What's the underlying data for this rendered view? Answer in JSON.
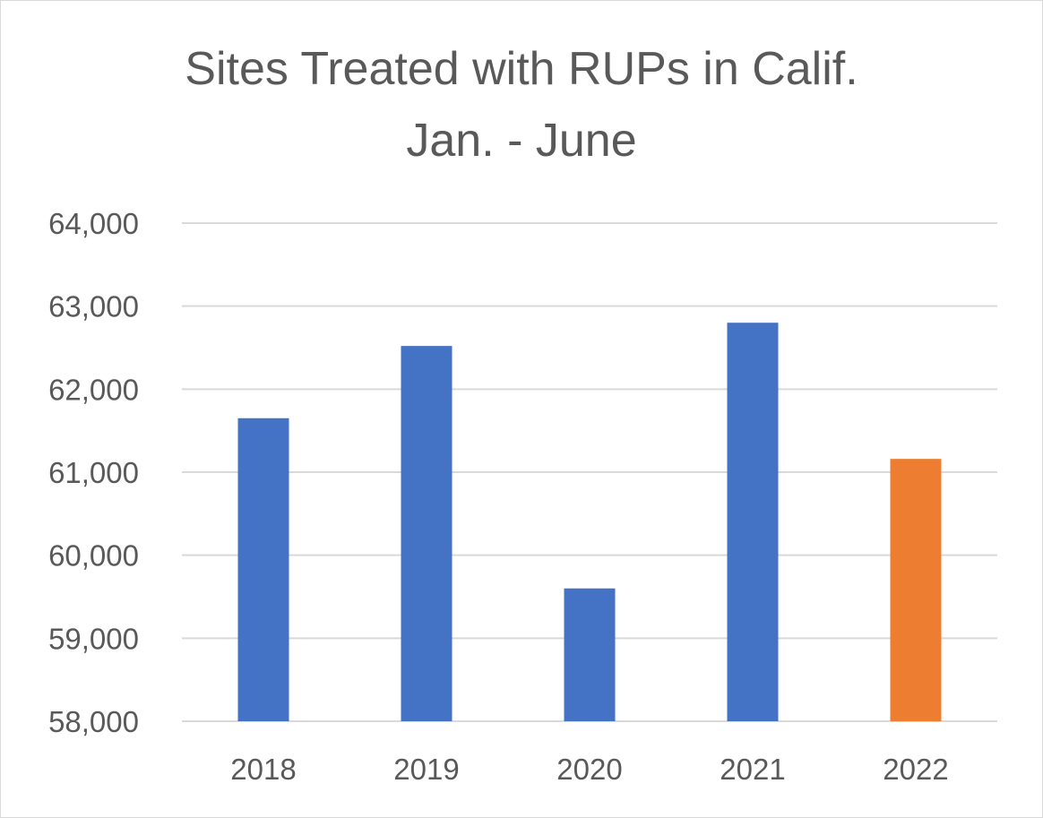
{
  "chart_data": {
    "type": "bar",
    "title": [
      "Sites Treated with RUPs in Calif.",
      "Jan. - June"
    ],
    "categories": [
      "2018",
      "2019",
      "2020",
      "2021",
      "2022"
    ],
    "values": [
      61650,
      62520,
      59600,
      62800,
      61160
    ],
    "bar_colors": [
      "#4472c4",
      "#4472c4",
      "#4472c4",
      "#4472c4",
      "#ed7d31"
    ],
    "ylim": [
      58000,
      64000
    ],
    "yticks": [
      58000,
      59000,
      60000,
      61000,
      62000,
      63000,
      64000
    ],
    "ytick_labels": [
      "58,000",
      "59,000",
      "60,000",
      "61,000",
      "62,000",
      "63,000",
      "64,000"
    ],
    "grid": true,
    "gridline_color": "#d9d9d9",
    "xlabel": "",
    "ylabel": "",
    "legend": "none"
  }
}
